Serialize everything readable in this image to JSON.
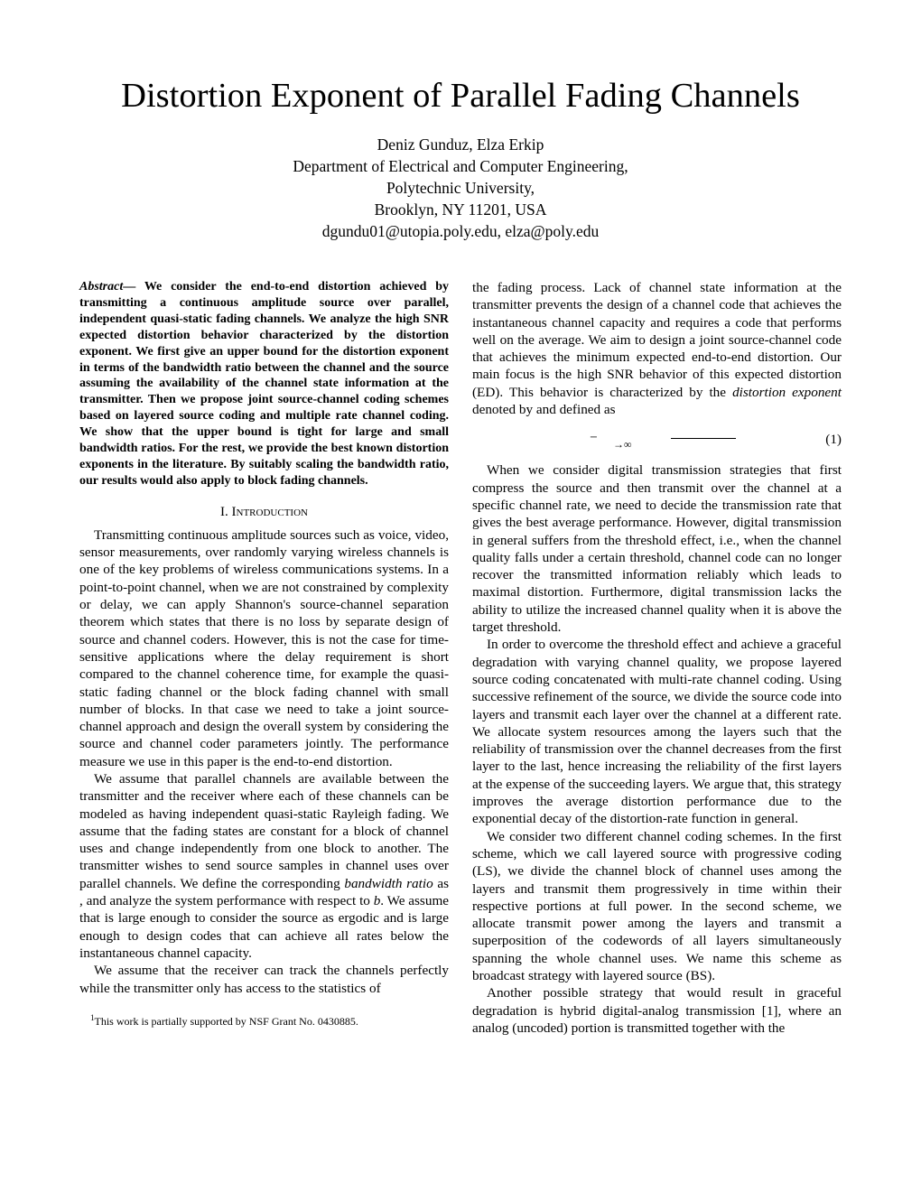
{
  "title": "Distortion Exponent of Parallel Fading Channels",
  "authors": "Deniz Gunduz, Elza Erkip",
  "department": "Department of Electrical and Computer Engineering,",
  "university": "Polytechnic University,",
  "address": "Brooklyn, NY 11201, USA",
  "emails": "dgundu01@utopia.poly.edu, elza@poly.edu",
  "abstract_lead": "Abstract",
  "abstract": "— We consider the end-to-end distortion achieved by transmitting a continuous amplitude source over     parallel, independent quasi-static fading channels. We analyze the high SNR expected distortion behavior characterized by the distortion exponent. We first give an upper bound for the distortion exponent in terms of the bandwidth ratio between the channel and the source assuming the availability of the channel state information at the transmitter. Then we propose joint source-channel coding schemes based on layered source coding and multiple rate channel coding. We show that the upper bound is tight for large and small bandwidth ratios. For the rest, we provide the best known distortion exponents in the literature. By suitably scaling the bandwidth ratio, our results would also apply to block fading channels.",
  "section1_heading": "I. Introduction",
  "left_p1": "Transmitting continuous amplitude sources such as voice, video, sensor measurements, over randomly varying wireless channels is one of the key problems of wireless communications systems. In a point-to-point channel, when we are not constrained by complexity or delay, we can apply Shannon's source-channel separation theorem which states that there is no loss by separate design of source and channel coders. However, this is not the case for time-sensitive applications where the delay requirement is short compared to the channel coherence time, for example the quasi-static fading channel or the block fading channel with small number of blocks. In that case we need to take a joint source-channel approach and design the overall system by considering the source and channel coder parameters jointly. The performance measure we use in this paper is the end-to-end distortion.",
  "left_p2a": "We assume that     parallel channels are available between the transmitter and the receiver where each of these channels can be modeled as having independent quasi-static Rayleigh fading. We assume that the fading states are constant for a block of     channel uses and change independently from one block to another. The transmitter wishes to send     source samples in     channel uses over     parallel channels. We define the corresponding ",
  "bandwidth_ratio_label": "bandwidth ratio",
  "left_p2b": " as           , and analyze the system performance with respect to ",
  "b_var": "b",
  "left_p2c": ". We assume that       is large enough to consider the source as ergodic and     is large enough to design codes that can achieve all rates below the instantaneous channel capacity.",
  "left_p3": "We assume that the receiver can track the channels perfectly while the transmitter only has access to the statistics of",
  "footnote_marker": "1",
  "footnote": "This work is partially supported by NSF Grant No. 0430885.",
  "right_p1a": "the fading process. Lack of channel state information at the transmitter prevents the design of a channel code that achieves the instantaneous channel capacity and requires a code that performs well on the average. We aim to design a joint source-channel code that achieves the minimum expected end-to-end distortion. Our main focus is the high SNR behavior of this expected distortion (ED). This behavior is characterized by the ",
  "distortion_exponent_label": "distortion exponent",
  "right_p1b": " denoted by      and defined as",
  "eq_minus": "−",
  "eq_arrow": "→∞",
  "eq_num": "(1)",
  "right_p2": "When we consider digital transmission strategies that first compress the source and then transmit over the channel at a specific channel rate, we need to decide the transmission rate that gives the best average performance. However, digital transmission in general suffers from the threshold effect, i.e., when the channel quality falls under a certain threshold, channel code can no longer recover the transmitted information reliably which leads to maximal distortion. Furthermore, digital transmission lacks the ability to utilize the increased channel quality when it is above the target threshold.",
  "right_p3": "In order to overcome the threshold effect and achieve a graceful degradation with varying channel quality, we propose layered source coding concatenated with multi-rate channel coding. Using successive refinement of the source, we divide the source code into layers and transmit each layer over the channel at a different rate. We allocate system resources among the layers such that the reliability of transmission over the channel decreases from the first layer to the last, hence increasing the reliability of the first layers at the expense of the succeeding layers. We argue that, this strategy improves the average distortion performance due to the exponential decay of the distortion-rate function in general.",
  "right_p4": "We consider two different channel coding schemes. In the first scheme, which we call layered source with progressive coding (LS), we divide the channel block of      channel uses among the layers and transmit them progressively in time within their respective portions at full power. In the second scheme, we allocate transmit power among the layers and transmit a superposition of the codewords of all layers simultaneously spanning the whole     channel uses. We name this scheme as broadcast strategy with layered source (BS).",
  "right_p5": "Another possible strategy that would result in graceful degradation is hybrid digital-analog transmission [1], where an analog (uncoded) portion is transmitted together with the"
}
